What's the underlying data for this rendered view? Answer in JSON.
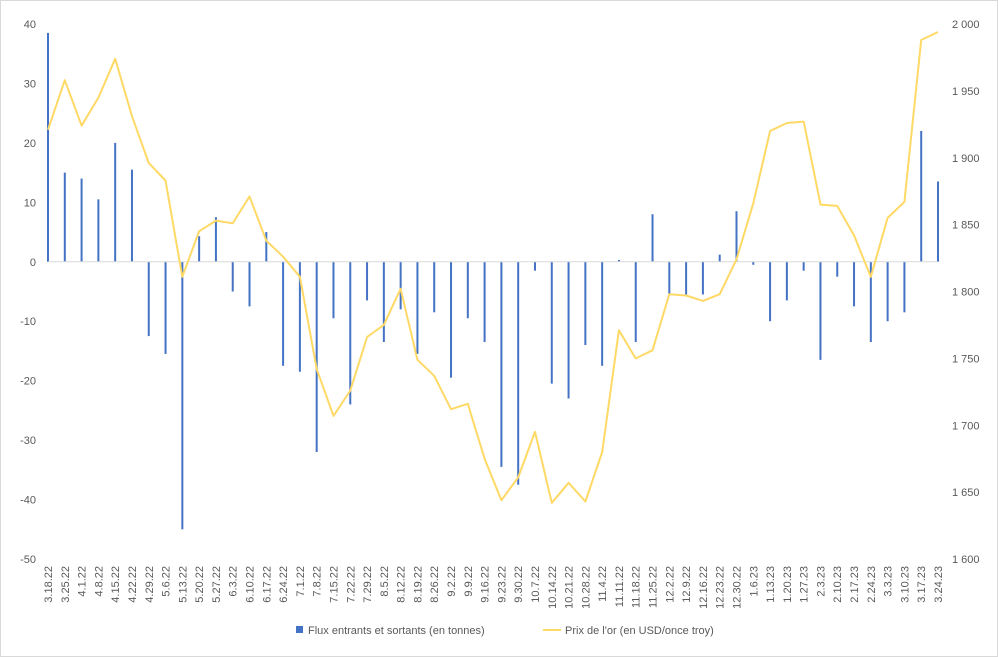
{
  "chart_data": {
    "type": "bar+line",
    "categories": [
      "3.18.22",
      "3.25.22",
      "4.1.22",
      "4.8.22",
      "4.15.22",
      "4.22.22",
      "4.29.22",
      "5.6.22",
      "5.13.22",
      "5.20.22",
      "5.27.22",
      "6.3.22",
      "6.10.22",
      "6.17.22",
      "6.24.22",
      "7.1.22",
      "7.8.22",
      "7.15.22",
      "7.22.22",
      "7.29.22",
      "8.5.22",
      "8.12.22",
      "8.19.22",
      "8.26.22",
      "9.2.22",
      "9.9.22",
      "9.16.22",
      "9.23.22",
      "9.30.22",
      "10.7.22",
      "10.14.22",
      "10.21.22",
      "10.28.22",
      "11.4.22",
      "11.11.22",
      "11.18.22",
      "11.25.22",
      "12.2.22",
      "12.9.22",
      "12.16.22",
      "12.23.22",
      "12.30.22",
      "1.6.23",
      "1.13.23",
      "1.20.23",
      "1.27.23",
      "2.3.23",
      "2.10.23",
      "2.17.23",
      "2.24.23",
      "3.3.23",
      "3.10.23",
      "3.17.23",
      "3.24.23"
    ],
    "series": [
      {
        "name": "Flux entrants et sortants (en tonnes)",
        "type": "bar",
        "axis": "left",
        "color": "#4472c4",
        "values": [
          38.5,
          15,
          14,
          10.5,
          20,
          15.5,
          -12.5,
          -15.5,
          -45,
          4.3,
          7.5,
          -5,
          -7.5,
          5,
          -17.5,
          -18.5,
          -32,
          -9.5,
          -24,
          -6.5,
          -13.5,
          -8,
          -15.5,
          -8.5,
          -19.5,
          -9.5,
          -13.5,
          -34.5,
          -37.5,
          -1.5,
          -20.5,
          -23,
          -14,
          -17.5,
          0.3,
          -13.5,
          8,
          -5.5,
          -5.5,
          -5.5,
          1.2,
          8.5,
          -0.5,
          -10,
          -6.5,
          -1.5,
          -16.5,
          -2.5,
          -7.5,
          -13.5,
          -10,
          -8.5,
          22,
          13.5
        ]
      },
      {
        "name": "Prix de l'or (en USD/once troy)",
        "type": "line",
        "axis": "right",
        "color": "#ffd966",
        "values": [
          1921,
          1958,
          1924,
          1945,
          1974,
          1931,
          1896,
          1883,
          1811,
          1845,
          1853,
          1851,
          1871,
          1838,
          1826,
          1811,
          1742,
          1707,
          1726,
          1766,
          1775,
          1802,
          1749,
          1737,
          1712,
          1716,
          1675,
          1644,
          1661,
          1695,
          1642,
          1657,
          1643,
          1680,
          1771,
          1750,
          1756,
          1798,
          1797,
          1793,
          1798,
          1824,
          1866,
          1920,
          1926,
          1927,
          1865,
          1864,
          1842,
          1811,
          1855,
          1867,
          1988,
          1994
        ]
      }
    ],
    "y_left": {
      "min": -50,
      "max": 40,
      "step": 10,
      "ticks": [
        "40",
        "30",
        "20",
        "10",
        "0",
        "-10",
        "-20",
        "-30",
        "-40",
        "-50"
      ]
    },
    "y_right": {
      "min": 1600,
      "max": 2000,
      "step": 50,
      "ticks": [
        "2 000",
        "1 950",
        "1 900",
        "1 850",
        "1 800",
        "1 750",
        "1 700",
        "1 650",
        "1 600"
      ]
    },
    "grid": false,
    "legend": "bottom"
  }
}
